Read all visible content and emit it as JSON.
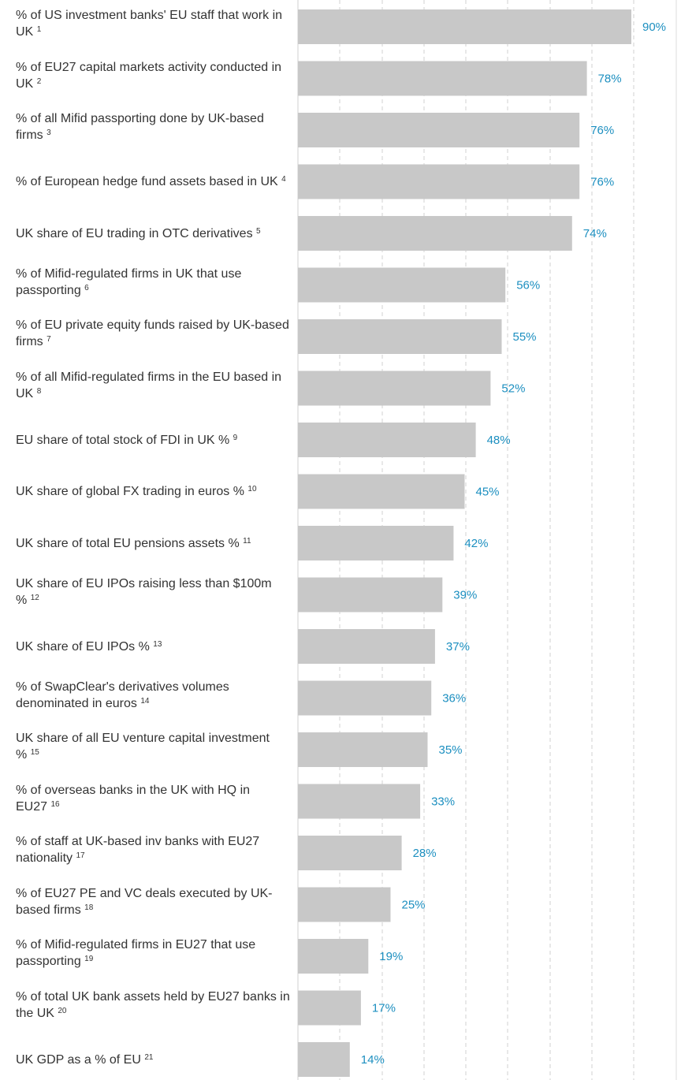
{
  "chart_data": {
    "type": "bar",
    "orientation": "horizontal",
    "grid": true,
    "xlim": [
      0,
      100
    ],
    "colors": {
      "bar": "#c8c8c8",
      "value_label": "#1c8fc0",
      "grid": "#d2d2d2"
    },
    "categories": [
      {
        "label": "% of US investment banks' EU staff that work in UK",
        "note": "1"
      },
      {
        "label": "% of EU27 capital markets activity conducted in UK",
        "note": "2"
      },
      {
        "label": "% of all Mifid passporting done by UK-based firms",
        "note": "3"
      },
      {
        "label": "% of European hedge fund assets based in UK",
        "note": "4"
      },
      {
        "label": "UK share of EU trading in OTC derivatives",
        "note": "5"
      },
      {
        "label": "% of Mifid-regulated firms in UK that use passporting",
        "note": "6"
      },
      {
        "label": "% of EU private equity funds raised by UK-based firms",
        "note": "7"
      },
      {
        "label": "% of all Mifid-regulated firms in the EU based in UK",
        "note": "8"
      },
      {
        "label": "EU share of total stock of FDI in UK %",
        "note": "9"
      },
      {
        "label": "UK share of global FX trading in euros %",
        "note": "10"
      },
      {
        "label": "UK share of total EU pensions assets %",
        "note": "11"
      },
      {
        "label": "UK share of EU IPOs raising less than $100m %",
        "note": "12"
      },
      {
        "label": "UK share of EU IPOs %",
        "note": "13"
      },
      {
        "label": "% of SwapClear's derivatives volumes denominated in euros",
        "note": "14"
      },
      {
        "label": "UK share of all EU venture capital investment %",
        "note": "15"
      },
      {
        "label": "% of overseas banks in the UK with HQ in EU27",
        "note": "16"
      },
      {
        "label": "% of staff at UK-based inv banks with EU27 nationality",
        "note": "17"
      },
      {
        "label": "% of EU27 PE and VC deals executed by UK-based firms",
        "note": "18"
      },
      {
        "label": "% of Mifid-regulated firms in EU27 that use passporting",
        "note": "19"
      },
      {
        "label": "% of total UK bank assets held by EU27 banks in the UK",
        "note": "20"
      },
      {
        "label": "UK GDP as a % of EU",
        "note": "21"
      }
    ],
    "values": [
      90,
      78,
      76,
      76,
      74,
      56,
      55,
      52,
      48,
      45,
      42,
      39,
      37,
      36,
      35,
      33,
      28,
      25,
      19,
      17,
      14
    ],
    "value_labels": [
      "90%",
      "78%",
      "76%",
      "76%",
      "74%",
      "56%",
      "55%",
      "52%",
      "48%",
      "45%",
      "42%",
      "39%",
      "37%",
      "36%",
      "35%",
      "33%",
      "28%",
      "25%",
      "19%",
      "17%",
      "14%"
    ]
  }
}
